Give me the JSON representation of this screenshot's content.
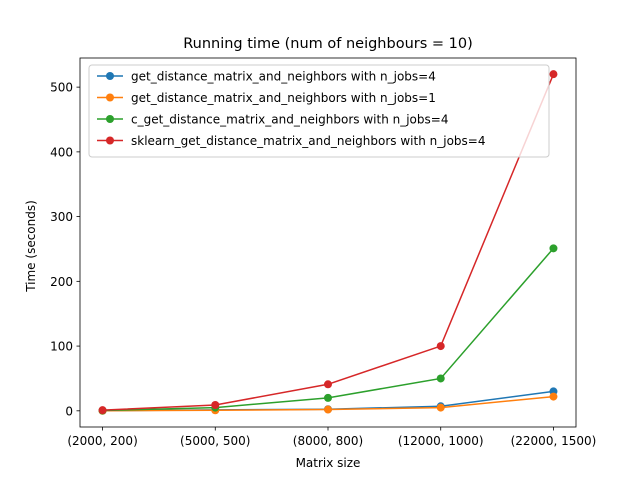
{
  "chart_data": {
    "type": "line",
    "title": "Running time (num of neighbours = 10)",
    "xlabel": "Matrix size",
    "ylabel": "Time (seconds)",
    "categories": [
      "(2000, 200)",
      "(5000, 500)",
      "(8000, 800)",
      "(12000, 1000)",
      "(22000, 1500)"
    ],
    "ylim": [
      -25,
      545
    ],
    "yticks": [
      0,
      100,
      200,
      300,
      400,
      500
    ],
    "grid": false,
    "legend_position": "top-left",
    "series": [
      {
        "name": "get_distance_matrix_and_neighbors with n_jobs=4",
        "color": "#1f77b4",
        "values": [
          0.2,
          1.5,
          2.5,
          7,
          30
        ]
      },
      {
        "name": "get_distance_matrix_and_neighbors with n_jobs=1",
        "color": "#ff7f0e",
        "values": [
          0.1,
          0.8,
          2,
          5,
          22
        ]
      },
      {
        "name": "c_get_distance_matrix_and_neighbors with n_jobs=4",
        "color": "#2ca02c",
        "values": [
          0.5,
          5,
          20,
          50,
          251
        ]
      },
      {
        "name": "sklearn_get_distance_matrix_and_neighbors with n_jobs=4",
        "color": "#d62728",
        "values": [
          1,
          9,
          41,
          100,
          520
        ]
      }
    ]
  }
}
